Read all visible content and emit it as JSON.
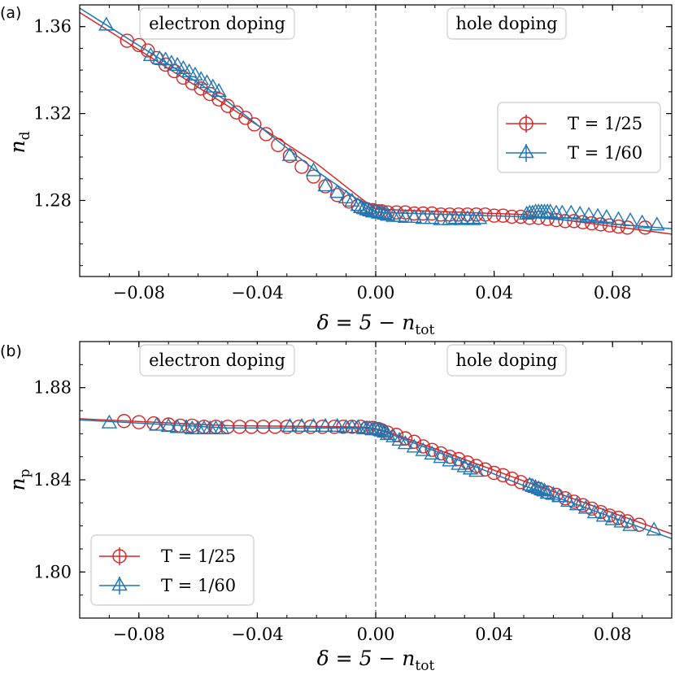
{
  "chart_data": [
    {
      "type": "scatter",
      "panel_label": "(a)",
      "title": "",
      "xlabel": "δ = 5 − n",
      "xlabel_sub": "tot",
      "ylabel": "n",
      "ylabel_sub": "d",
      "xlim": [
        -0.1,
        0.1
      ],
      "ylim": [
        1.245,
        1.37
      ],
      "xticks": [
        -0.08,
        -0.04,
        0.0,
        0.04,
        0.08
      ],
      "xtick_labels": [
        "−0.08",
        "−0.04",
        "0.00",
        "0.04",
        "0.08"
      ],
      "yticks": [
        1.28,
        1.32,
        1.36
      ],
      "ytick_labels": [
        "1.28",
        "1.32",
        "1.36"
      ],
      "vline_x": 0.0,
      "annotations": [
        {
          "text": "electron doping",
          "x": -0.054,
          "y": 1.3605
        },
        {
          "text": "hole doping",
          "x": 0.0485,
          "y": 1.3605
        }
      ],
      "legend": {
        "position": "center-right",
        "entries": [
          "T = 1/25",
          "T = 1/60"
        ]
      },
      "series": [
        {
          "name": "T = 1/25",
          "color": "#d62728",
          "marker": "circle",
          "line_x": [
            -0.1,
            -0.05,
            -0.02,
            -0.005,
            0.0,
            0.05,
            0.1
          ],
          "line_y": [
            1.3665,
            1.3235,
            1.297,
            1.281,
            1.276,
            1.2735,
            1.2645
          ],
          "x": [
            -0.084,
            -0.08,
            -0.077,
            -0.074,
            -0.071,
            -0.068,
            -0.065,
            -0.062,
            -0.059,
            -0.056,
            -0.053,
            -0.05,
            -0.047,
            -0.044,
            -0.041,
            -0.037,
            -0.033,
            -0.029,
            -0.025,
            -0.021,
            -0.017,
            -0.013,
            -0.009,
            -0.006,
            -0.003,
            -0.001,
            0.0,
            0.001,
            0.002,
            0.004,
            0.007,
            0.01,
            0.013,
            0.016,
            0.019,
            0.022,
            0.025,
            0.028,
            0.031,
            0.034,
            0.037,
            0.04,
            0.043,
            0.046,
            0.049,
            0.052,
            0.055,
            0.058,
            0.061,
            0.064,
            0.067,
            0.07,
            0.073,
            0.076,
            0.079,
            0.082,
            0.085,
            0.091
          ],
          "y": [
            1.3535,
            1.3515,
            1.349,
            1.3455,
            1.3425,
            1.3395,
            1.3365,
            1.334,
            1.3315,
            1.329,
            1.3265,
            1.3235,
            1.3205,
            1.318,
            1.315,
            1.3105,
            1.3055,
            1.3005,
            1.2955,
            1.291,
            1.2865,
            1.2825,
            1.2795,
            1.2775,
            1.276,
            1.2755,
            1.275,
            1.275,
            1.275,
            1.2745,
            1.2745,
            1.2745,
            1.274,
            1.274,
            1.274,
            1.2735,
            1.2735,
            1.2735,
            1.2735,
            1.2735,
            1.2735,
            1.273,
            1.273,
            1.2725,
            1.2725,
            1.272,
            1.272,
            1.2715,
            1.271,
            1.2705,
            1.2705,
            1.27,
            1.2695,
            1.269,
            1.2685,
            1.268,
            1.2675,
            1.2675
          ]
        },
        {
          "name": "T = 1/60",
          "color": "#1f77b4",
          "marker": "triangle",
          "line_x": [
            -0.1,
            -0.05,
            -0.02,
            -0.005,
            0.0,
            0.05,
            0.1
          ],
          "line_y": [
            1.3685,
            1.3255,
            1.2935,
            1.2795,
            1.2745,
            1.2725,
            1.267
          ],
          "x": [
            -0.091,
            -0.076,
            -0.073,
            -0.071,
            -0.069,
            -0.067,
            -0.065,
            -0.063,
            -0.061,
            -0.059,
            -0.057,
            -0.055,
            -0.053,
            -0.029,
            -0.021,
            -0.017,
            -0.013,
            -0.01,
            -0.008,
            -0.006,
            -0.005,
            -0.004,
            -0.003,
            -0.002,
            -0.001,
            0.0,
            0.001,
            0.002,
            0.003,
            0.004,
            0.006,
            0.008,
            0.01,
            0.013,
            0.016,
            0.019,
            0.022,
            0.025,
            0.027,
            0.029,
            0.031,
            0.033,
            0.035,
            0.051,
            0.052,
            0.053,
            0.054,
            0.055,
            0.056,
            0.057,
            0.058,
            0.059,
            0.061,
            0.063,
            0.066,
            0.069,
            0.072,
            0.075,
            0.078,
            0.082,
            0.086,
            0.09,
            0.095
          ],
          "y": [
            1.3605,
            1.3465,
            1.345,
            1.3445,
            1.343,
            1.342,
            1.3405,
            1.339,
            1.3375,
            1.3355,
            1.334,
            1.332,
            1.33,
            1.3005,
            1.2935,
            1.2865,
            1.2835,
            1.281,
            1.2795,
            1.2775,
            1.2765,
            1.276,
            1.2755,
            1.275,
            1.2745,
            1.2745,
            1.274,
            1.274,
            1.2735,
            1.273,
            1.2725,
            1.2725,
            1.272,
            1.272,
            1.2715,
            1.2715,
            1.271,
            1.271,
            1.2715,
            1.271,
            1.2715,
            1.271,
            1.2715,
            1.2735,
            1.274,
            1.274,
            1.2745,
            1.2745,
            1.2745,
            1.2745,
            1.2745,
            1.2745,
            1.274,
            1.274,
            1.274,
            1.2735,
            1.273,
            1.2725,
            1.272,
            1.271,
            1.2705,
            1.2695,
            1.2685
          ]
        }
      ]
    },
    {
      "type": "scatter",
      "panel_label": "(b)",
      "title": "",
      "xlabel": "δ = 5 − n",
      "xlabel_sub": "tot",
      "ylabel": "n",
      "ylabel_sub": "p",
      "xlim": [
        -0.1,
        0.1
      ],
      "ylim": [
        1.78,
        1.9
      ],
      "xticks": [
        -0.08,
        -0.04,
        0.0,
        0.04,
        0.08
      ],
      "xtick_labels": [
        "−0.08",
        "−0.04",
        "0.00",
        "0.04",
        "0.08"
      ],
      "yticks": [
        1.8,
        1.84,
        1.88
      ],
      "ytick_labels": [
        "1.80",
        "1.84",
        "1.88"
      ],
      "vline_x": 0.0,
      "annotations": [
        {
          "text": "electron doping",
          "x": -0.054,
          "y": 1.8904
        },
        {
          "text": "hole doping",
          "x": 0.0485,
          "y": 1.8904
        }
      ],
      "legend": {
        "position": "lower-left",
        "entries": [
          "T = 1/25",
          "T = 1/60"
        ]
      },
      "series": [
        {
          "name": "T = 1/25",
          "color": "#d62728",
          "marker": "circle",
          "line_x": [
            -0.1,
            -0.05,
            -0.01,
            -0.003,
            0.0,
            0.003,
            0.02,
            0.05,
            0.1
          ],
          "line_y": [
            1.8665,
            1.8635,
            1.863,
            1.8628,
            1.8622,
            1.8613,
            1.8535,
            1.8395,
            1.8165
          ],
          "x": [
            -0.085,
            -0.08,
            -0.075,
            -0.07,
            -0.066,
            -0.062,
            -0.058,
            -0.054,
            -0.05,
            -0.046,
            -0.042,
            -0.038,
            -0.034,
            -0.03,
            -0.026,
            -0.022,
            -0.018,
            -0.014,
            -0.011,
            -0.008,
            -0.005,
            -0.003,
            -0.001,
            0.0,
            0.001,
            0.002,
            0.004,
            0.007,
            0.01,
            0.013,
            0.016,
            0.019,
            0.022,
            0.025,
            0.028,
            0.031,
            0.034,
            0.037,
            0.04,
            0.043,
            0.046,
            0.049,
            0.052,
            0.055,
            0.058,
            0.061,
            0.064,
            0.067,
            0.07,
            0.073,
            0.076,
            0.079,
            0.082,
            0.085,
            0.089
          ],
          "y": [
            1.8655,
            1.865,
            1.8645,
            1.864,
            1.8635,
            1.8635,
            1.863,
            1.863,
            1.863,
            1.863,
            1.863,
            1.863,
            1.863,
            1.863,
            1.863,
            1.863,
            1.863,
            1.863,
            1.863,
            1.863,
            1.863,
            1.8625,
            1.8625,
            1.862,
            1.862,
            1.8615,
            1.8605,
            1.8595,
            1.858,
            1.8565,
            1.8545,
            1.853,
            1.8515,
            1.85,
            1.849,
            1.8475,
            1.846,
            1.8445,
            1.843,
            1.842,
            1.8405,
            1.839,
            1.8375,
            1.836,
            1.8345,
            1.8335,
            1.832,
            1.8305,
            1.829,
            1.8275,
            1.826,
            1.8245,
            1.8235,
            1.822,
            1.8205
          ]
        },
        {
          "name": "T = 1/60",
          "color": "#1f77b4",
          "marker": "triangle",
          "line_x": [
            -0.1,
            -0.05,
            -0.01,
            -0.003,
            0.0,
            0.003,
            0.02,
            0.05,
            0.1
          ],
          "line_y": [
            1.866,
            1.8625,
            1.8625,
            1.8625,
            1.862,
            1.8608,
            1.8525,
            1.8375,
            1.8145
          ],
          "x": [
            -0.09,
            -0.074,
            -0.07,
            -0.067,
            -0.064,
            -0.062,
            -0.06,
            -0.058,
            -0.056,
            -0.054,
            -0.052,
            -0.029,
            -0.025,
            -0.021,
            -0.017,
            -0.013,
            -0.01,
            -0.008,
            -0.006,
            -0.004,
            -0.003,
            -0.002,
            -0.001,
            0.0,
            0.001,
            0.002,
            0.003,
            0.004,
            0.006,
            0.008,
            0.01,
            0.013,
            0.016,
            0.019,
            0.022,
            0.025,
            0.028,
            0.03,
            0.032,
            0.034,
            0.052,
            0.053,
            0.054,
            0.055,
            0.056,
            0.057,
            0.058,
            0.06,
            0.062,
            0.065,
            0.068,
            0.071,
            0.074,
            0.077,
            0.08,
            0.083,
            0.086,
            0.094
          ],
          "y": [
            1.8645,
            1.8635,
            1.863,
            1.8625,
            1.8625,
            1.862,
            1.862,
            1.862,
            1.862,
            1.862,
            1.862,
            1.863,
            1.863,
            1.863,
            1.863,
            1.863,
            1.8625,
            1.8625,
            1.8625,
            1.862,
            1.862,
            1.862,
            1.8615,
            1.862,
            1.8615,
            1.861,
            1.8605,
            1.8595,
            1.8585,
            1.857,
            1.8555,
            1.854,
            1.8525,
            1.851,
            1.8495,
            1.848,
            1.8465,
            1.8455,
            1.8445,
            1.8435,
            1.8375,
            1.837,
            1.8365,
            1.836,
            1.8355,
            1.835,
            1.834,
            1.8335,
            1.8325,
            1.8305,
            1.829,
            1.8275,
            1.8255,
            1.824,
            1.8225,
            1.8215,
            1.82,
            1.818
          ]
        }
      ]
    }
  ]
}
